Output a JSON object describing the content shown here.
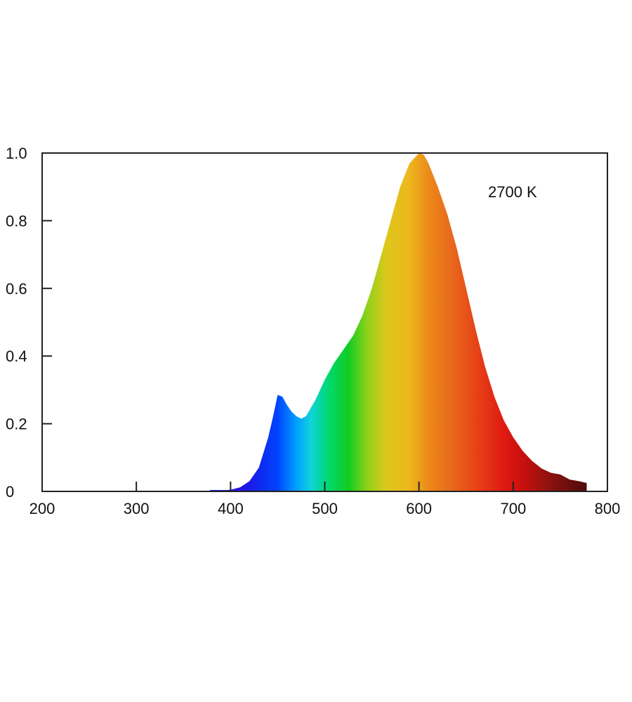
{
  "chart_data": {
    "type": "area",
    "title": "",
    "xlabel": "",
    "ylabel": "",
    "xlim": [
      200,
      800
    ],
    "ylim": [
      0,
      1.0
    ],
    "x_ticks": [
      200,
      300,
      400,
      500,
      600,
      700,
      800
    ],
    "x_tick_labels": [
      "200",
      "300",
      "400",
      "500",
      "600",
      "700",
      "800"
    ],
    "y_ticks": [
      0,
      0.2,
      0.4,
      0.6,
      0.8,
      1.0
    ],
    "y_tick_labels": [
      "0",
      "0.2",
      "0.4",
      "0.6",
      "0.8",
      "1.0"
    ],
    "grid": false,
    "legend": "none",
    "fill": "visible-spectrum colour gradient",
    "annotation": "2700 K",
    "series": [
      {
        "x": [
          378,
          390,
          400,
          410,
          420,
          430,
          440,
          445,
          450,
          455,
          460,
          465,
          470,
          475,
          480,
          490,
          500,
          510,
          520,
          530,
          540,
          550,
          560,
          570,
          580,
          590,
          600,
          605,
          610,
          620,
          630,
          640,
          650,
          660,
          670,
          680,
          690,
          700,
          710,
          720,
          730,
          740,
          750,
          760,
          770,
          778
        ],
        "y": [
          0.0,
          0.002,
          0.005,
          0.012,
          0.03,
          0.07,
          0.16,
          0.22,
          0.285,
          0.28,
          0.255,
          0.235,
          0.222,
          0.215,
          0.222,
          0.27,
          0.33,
          0.38,
          0.42,
          0.46,
          0.52,
          0.6,
          0.7,
          0.8,
          0.9,
          0.97,
          1.0,
          0.995,
          0.97,
          0.9,
          0.82,
          0.72,
          0.6,
          0.48,
          0.37,
          0.28,
          0.21,
          0.16,
          0.12,
          0.09,
          0.068,
          0.055,
          0.05,
          0.035,
          0.03,
          0.025
        ]
      }
    ]
  }
}
